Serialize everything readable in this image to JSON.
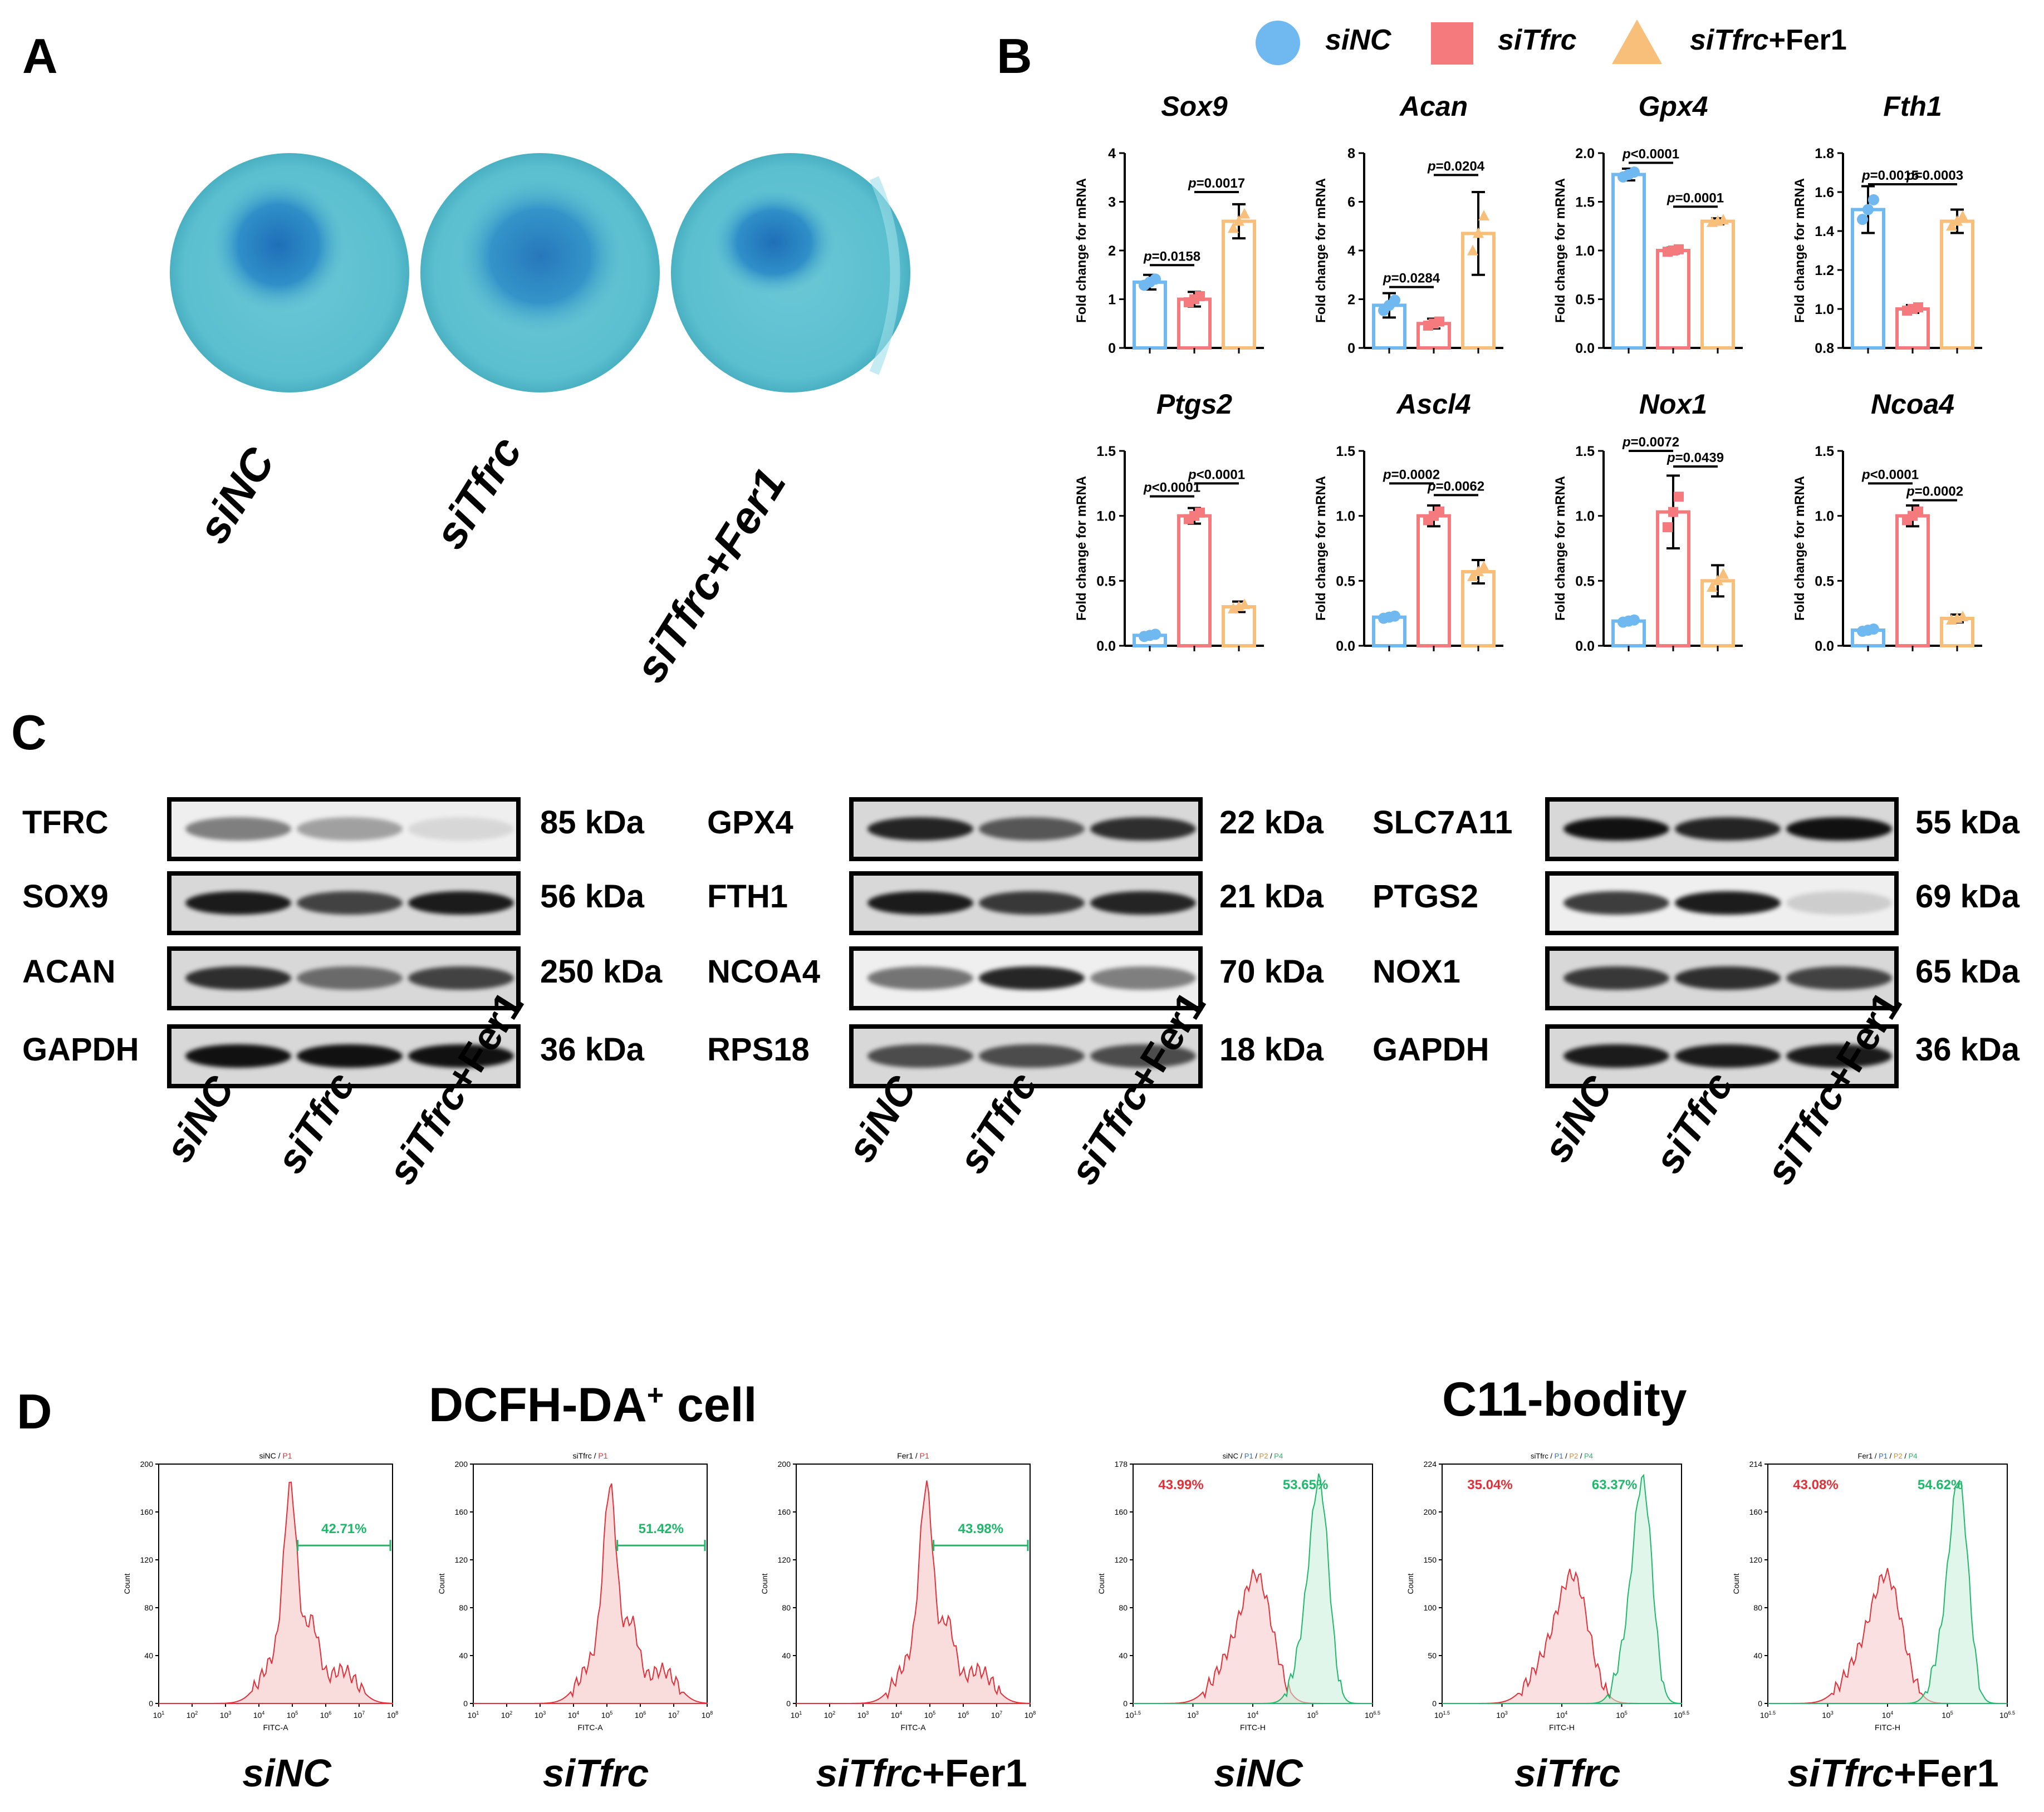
{
  "panels": {
    "A": "A",
    "B": "B",
    "C": "C",
    "D": "D"
  },
  "groups": [
    {
      "it": "siNC",
      "rest": ""
    },
    {
      "it": "siTfrc",
      "rest": ""
    },
    {
      "it": "siTfrc",
      "rest": "+Fer1"
    }
  ],
  "panelA": {
    "dishes": [
      "siNC",
      "siTfrc",
      "siTfrc+Fer1"
    ],
    "labels": [
      {
        "it": "siNC",
        "rest": ""
      },
      {
        "it": "siTfrc",
        "rest": ""
      },
      {
        "it": "siTfrc+Fer1",
        "rest": ""
      }
    ]
  },
  "legend": [
    {
      "it": "siNC",
      "rest": "",
      "shape": "circle",
      "color": "#6fb8f0"
    },
    {
      "it": "siTfrc",
      "rest": "",
      "shape": "square",
      "color": "#f47a7d"
    },
    {
      "it": "siTfrc",
      "rest": "+Fer1",
      "shape": "triangle",
      "color": "#f7bf7a"
    }
  ],
  "colors": {
    "siNC": "#6fb8f0",
    "siTfrc": "#f47a7d",
    "fer1": "#f7bf7a",
    "p1": "#e0303a",
    "p4": "#1fb86a"
  },
  "ylabel": "Fold change for mRNA",
  "chart_data": [
    {
      "type": "bar",
      "title": "Sox9",
      "ylabel": "Fold change for mRNA",
      "categories": [
        "siNC",
        "siTfrc",
        "siTfrc+Fer1"
      ],
      "values": [
        1.35,
        1.0,
        2.6
      ],
      "errors": [
        0.15,
        0.15,
        0.35
      ],
      "ylim": [
        0,
        4
      ],
      "yticks": [
        "0",
        "1",
        "2",
        "3",
        "4"
      ],
      "tickvals": [
        0,
        1,
        2,
        3,
        4
      ],
      "brackets": [
        {
          "from": 0,
          "to": 1,
          "label": "p=0.0158",
          "y": 1.7
        },
        {
          "from": 1,
          "to": 2,
          "label": "p=0.0017",
          "y": 3.2
        }
      ]
    },
    {
      "type": "bar",
      "title": "Acan",
      "ylabel": "Fold change for mRNA",
      "categories": [
        "siNC",
        "siTfrc",
        "siTfrc+Fer1"
      ],
      "values": [
        1.75,
        1.0,
        4.7
      ],
      "errors": [
        0.5,
        0.2,
        1.7
      ],
      "ylim": [
        0,
        8
      ],
      "yticks": [
        "0",
        "2",
        "4",
        "6",
        "8"
      ],
      "tickvals": [
        0,
        2,
        4,
        6,
        8
      ],
      "brackets": [
        {
          "from": 0,
          "to": 1,
          "label": "p=0.0284",
          "y": 2.5
        },
        {
          "from": 1,
          "to": 2,
          "label": "p=0.0204",
          "y": 7.1
        }
      ]
    },
    {
      "type": "bar",
      "title": "Gpx4",
      "ylabel": "Fold change for mRNA",
      "categories": [
        "siNC",
        "siTfrc",
        "siTfrc+Fer1"
      ],
      "values": [
        1.78,
        1.0,
        1.3
      ],
      "errors": [
        0.06,
        0.03,
        0.03
      ],
      "ylim": [
        0,
        2.0
      ],
      "yticks": [
        "0.0",
        "0.5",
        "1.0",
        "1.5",
        "2.0"
      ],
      "tickvals": [
        0,
        0.5,
        1.0,
        1.5,
        2.0
      ],
      "brackets": [
        {
          "from": 0,
          "to": 1,
          "label": "p<0.0001",
          "y": 1.9
        },
        {
          "from": 1,
          "to": 2,
          "label": "p=0.0001",
          "y": 1.45
        }
      ]
    },
    {
      "type": "bar",
      "title": "Fth1",
      "ylabel": "Fold change for mRNA",
      "categories": [
        "siNC",
        "siTfrc",
        "siTfrc+Fer1"
      ],
      "values": [
        1.51,
        1.0,
        1.45
      ],
      "errors": [
        0.12,
        0.02,
        0.06
      ],
      "ylim": [
        0.8,
        1.8
      ],
      "yticks": [
        "0.8",
        "1.0",
        "1.2",
        "1.4",
        "1.6",
        "1.8"
      ],
      "tickvals": [
        0.8,
        1.0,
        1.2,
        1.4,
        1.6,
        1.8
      ],
      "brackets": [
        {
          "from": 0,
          "to": 1,
          "label": "p=0.0015",
          "y": 1.64
        },
        {
          "from": 1,
          "to": 2,
          "label": "p=0.0003",
          "y": 1.64
        }
      ]
    },
    {
      "type": "bar",
      "title": "Ptgs2",
      "ylabel": "Fold change for mRNA",
      "categories": [
        "siNC",
        "siTfrc",
        "siTfrc+Fer1"
      ],
      "values": [
        0.08,
        1.0,
        0.3
      ],
      "errors": [
        0.02,
        0.06,
        0.04
      ],
      "ylim": [
        0,
        1.5
      ],
      "yticks": [
        "0.0",
        "0.5",
        "1.0",
        "1.5"
      ],
      "tickvals": [
        0,
        0.5,
        1.0,
        1.5
      ],
      "brackets": [
        {
          "from": 0,
          "to": 1,
          "label": "p<0.0001",
          "y": 1.15
        },
        {
          "from": 1,
          "to": 2,
          "label": "p<0.0001",
          "y": 1.25
        }
      ]
    },
    {
      "type": "bar",
      "title": "Ascl4",
      "ylabel": "Fold change for mRNA",
      "categories": [
        "siNC",
        "siTfrc",
        "siTfrc+Fer1"
      ],
      "values": [
        0.22,
        1.0,
        0.57
      ],
      "errors": [
        0.02,
        0.08,
        0.09
      ],
      "ylim": [
        0,
        1.5
      ],
      "yticks": [
        "0.0",
        "0.5",
        "1.0",
        "1.5"
      ],
      "tickvals": [
        0,
        0.5,
        1.0,
        1.5
      ],
      "brackets": [
        {
          "from": 0,
          "to": 1,
          "label": "p=0.0002",
          "y": 1.25
        },
        {
          "from": 1,
          "to": 2,
          "label": "p=0.0062",
          "y": 1.16
        }
      ]
    },
    {
      "type": "bar",
      "title": "Nox1",
      "ylabel": "Fold change for mRNA",
      "categories": [
        "siNC",
        "siTfrc",
        "siTfrc+Fer1"
      ],
      "values": [
        0.19,
        1.03,
        0.5
      ],
      "errors": [
        0.02,
        0.28,
        0.12
      ],
      "ylim": [
        0,
        1.5
      ],
      "yticks": [
        "0.0",
        "0.5",
        "1.0",
        "1.5"
      ],
      "tickvals": [
        0,
        0.5,
        1.0,
        1.5
      ],
      "brackets": [
        {
          "from": 0,
          "to": 1,
          "label": "p=0.0072",
          "y": 1.5
        },
        {
          "from": 1,
          "to": 2,
          "label": "p=0.0439",
          "y": 1.38
        }
      ]
    },
    {
      "type": "bar",
      "title": "Ncoa4",
      "ylabel": "Fold change for mRNA",
      "categories": [
        "siNC",
        "siTfrc",
        "siTfrc+Fer1"
      ],
      "values": [
        0.12,
        1.0,
        0.21
      ],
      "errors": [
        0.02,
        0.08,
        0.03
      ],
      "ylim": [
        0,
        1.5
      ],
      "yticks": [
        "0.0",
        "0.5",
        "1.0",
        "1.5"
      ],
      "tickvals": [
        0,
        0.5,
        1.0,
        1.5
      ],
      "brackets": [
        {
          "from": 0,
          "to": 1,
          "label": "p<0.0001",
          "y": 1.25
        },
        {
          "from": 1,
          "to": 2,
          "label": "p=0.0002",
          "y": 1.12
        }
      ]
    }
  ],
  "westernBlots": [
    {
      "rows": [
        {
          "protein": "TFRC",
          "kda": "85 kDa",
          "intensity": [
            0.5,
            0.35,
            0.1
          ],
          "faint": true
        },
        {
          "protein": "SOX9",
          "kda": "56 kDa",
          "intensity": [
            0.95,
            0.75,
            0.95
          ]
        },
        {
          "protein": "ACAN",
          "kda": "250 kDa",
          "intensity": [
            0.85,
            0.55,
            0.75
          ]
        },
        {
          "protein": "GAPDH",
          "kda": "36 kDa",
          "intensity": [
            1,
            1,
            1
          ]
        }
      ]
    },
    {
      "rows": [
        {
          "protein": "GPX4",
          "kda": "22 kDa",
          "intensity": [
            0.9,
            0.65,
            0.85
          ]
        },
        {
          "protein": "FTH1",
          "kda": "21 kDa",
          "intensity": [
            0.95,
            0.8,
            0.9
          ]
        },
        {
          "protein": "NCOA4",
          "kda": "70 kDa",
          "intensity": [
            0.55,
            0.9,
            0.5
          ],
          "faint": true
        },
        {
          "protein": "RPS18",
          "kda": "18 kDa",
          "intensity": [
            0.7,
            0.7,
            0.7
          ]
        }
      ]
    },
    {
      "rows": [
        {
          "protein": "SLC7A11",
          "kda": "55 kDa",
          "intensity": [
            1,
            0.9,
            1
          ]
        },
        {
          "protein": "PTGS2",
          "kda": "69 kDa",
          "intensity": [
            0.8,
            0.95,
            0.15
          ],
          "faint": true
        },
        {
          "protein": "NOX1",
          "kda": "65 kDa",
          "intensity": [
            0.8,
            0.85,
            0.75
          ]
        },
        {
          "protein": "GAPDH",
          "kda": "36 kDa",
          "intensity": [
            0.95,
            0.95,
            0.95
          ]
        }
      ]
    }
  ],
  "flow": {
    "dcfh_title": {
      "main": "DCFH-DA",
      "sup": "+",
      "tail": " cell"
    },
    "c11_title": "C11-bodity",
    "dcfh": [
      {
        "head": "siNC",
        "gate": "P1",
        "pct": "42.71%",
        "peak": 4.95,
        "ymax": "200",
        "yticks": [
          "0",
          "40",
          "80",
          "120",
          "160",
          "200"
        ],
        "xlabel": "FITC-A",
        "ylabel": "Count",
        "xticks": [
          "10",
          "10",
          "10",
          "10",
          "10",
          "10",
          "10",
          "10"
        ],
        "xexp": [
          "1",
          "2",
          "3",
          "4",
          "5",
          "6",
          "7",
          "8"
        ]
      },
      {
        "head": "siTfrc",
        "gate": "P1",
        "pct": "51.42%",
        "peak": 5.1,
        "ymax": "200",
        "yticks": [
          "0",
          "40",
          "80",
          "120",
          "160",
          "200"
        ],
        "xlabel": "FITC-A",
        "ylabel": "Count",
        "xticks": [
          "10",
          "10",
          "10",
          "10",
          "10",
          "10",
          "10",
          "10"
        ],
        "xexp": [
          "1",
          "2",
          "3",
          "4",
          "5",
          "6",
          "7",
          "8"
        ]
      },
      {
        "head": "Fer1",
        "gate": "P1",
        "pct": "43.98%",
        "peak": 4.9,
        "ymax": "200",
        "yticks": [
          "0",
          "40",
          "80",
          "120",
          "160",
          "200"
        ],
        "xlabel": "FITC-A",
        "ylabel": "Count",
        "xticks": [
          "10",
          "10",
          "10",
          "10",
          "10",
          "10",
          "10",
          "10"
        ],
        "xexp": [
          "1",
          "2",
          "3",
          "4",
          "5",
          "6",
          "7",
          "8"
        ]
      }
    ],
    "c11": [
      {
        "head": "siNC",
        "gates": [
          "P1",
          "P2",
          "P4"
        ],
        "red_pct": "43.99%",
        "green_pct": "53.65%",
        "yticks": [
          "0",
          "40",
          "80",
          "120",
          "160",
          "178"
        ],
        "xlabel": "FITC-H",
        "ylabel": "Count",
        "xticks": [
          "10",
          "10",
          "10",
          "10",
          "10"
        ],
        "xexp": [
          "1.5",
          "3",
          "4",
          "5",
          "6.5"
        ]
      },
      {
        "head": "siTfrc",
        "gates": [
          "P1",
          "P2",
          "P4"
        ],
        "red_pct": "35.04%",
        "green_pct": "63.37%",
        "yticks": [
          "0",
          "50",
          "100",
          "150",
          "200",
          "224"
        ],
        "xlabel": "FITC-H",
        "ylabel": "Count",
        "xticks": [
          "10",
          "10",
          "10",
          "10",
          "10"
        ],
        "xexp": [
          "1.5",
          "3",
          "4",
          "5",
          "6.5"
        ]
      },
      {
        "head": "Fer1",
        "gates": [
          "P1",
          "P2",
          "P4"
        ],
        "red_pct": "43.08%",
        "green_pct": "54.62%",
        "yticks": [
          "0",
          "40",
          "80",
          "120",
          "160",
          "214"
        ],
        "xlabel": "FITC-H",
        "ylabel": "Count",
        "xticks": [
          "10",
          "10",
          "10",
          "10",
          "10"
        ],
        "xexp": [
          "1.5",
          "3",
          "4",
          "5",
          "6.5"
        ]
      }
    ],
    "captions": [
      {
        "it": "siNC",
        "rest": ""
      },
      {
        "it": "siTfrc",
        "rest": ""
      },
      {
        "it": "siTfrc",
        "rest": "+Fer1"
      },
      {
        "it": "siNC",
        "rest": ""
      },
      {
        "it": "siTfrc",
        "rest": ""
      },
      {
        "it": "siTfrc",
        "rest": "+Fer1"
      }
    ]
  }
}
